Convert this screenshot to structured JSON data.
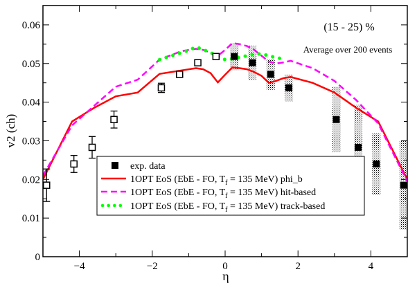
{
  "chart_data": {
    "type": "line",
    "title": "",
    "annotations": [
      "(15 - 25) %",
      "Average over 200 events"
    ],
    "xlabel": "η",
    "ylabel": "v2 (ch)",
    "xlim": [
      -5,
      5
    ],
    "ylim": [
      0,
      0.065
    ],
    "xticks": [
      -4,
      -2,
      0,
      2,
      4
    ],
    "yticks": [
      0,
      0.01,
      0.02,
      0.03,
      0.04,
      0.05,
      0.06
    ],
    "ytick_labels": [
      "0",
      "0.01",
      "0.02",
      "0.03",
      "0.04",
      "0.05",
      "0.06"
    ],
    "legend_position": "bottom-center",
    "colors": {
      "red": "#ff0000",
      "magenta": "#ff00ff",
      "green": "#00ff00",
      "black": "#000000"
    },
    "legend": [
      {
        "label_pre": "exp. data",
        "label_sub": "",
        "label_post": ""
      },
      {
        "label_pre": "1OPT EoS (EbE - FO, T",
        "label_sub": "f",
        "label_post": " = 135 MeV) phi_b"
      },
      {
        "label_pre": "1OPT EoS (EbE - FO, T",
        "label_sub": "f",
        "label_post": " = 135 MeV) hit-based"
      },
      {
        "label_pre": "1OPT EoS (EbE - FO, T",
        "label_sub": "f",
        "label_post": " = 135 MeV) track-based"
      }
    ],
    "exp_data_open": {
      "x": [
        -4.9,
        -4.15,
        -3.65,
        -3.05,
        -1.75,
        -1.25,
        -0.75,
        -0.25
      ],
      "y": [
        0.0185,
        0.024,
        0.0283,
        0.0355,
        0.0437,
        0.0472,
        0.0502,
        0.0518
      ],
      "err": [
        0.0042,
        0.0022,
        0.0028,
        0.0022,
        0.0012,
        0.0008,
        0.0006,
        0.0006
      ]
    },
    "exp_data_filled": {
      "x": [
        0.25,
        0.75,
        1.25,
        1.75,
        3.05,
        3.65,
        4.15,
        4.9
      ],
      "y": [
        0.0518,
        0.0502,
        0.0472,
        0.0437,
        0.0355,
        0.0283,
        0.024,
        0.0185
      ],
      "sys_err": [
        0.0035,
        0.0045,
        0.004,
        0.0035,
        0.0085,
        0.011,
        0.008,
        0.0115
      ]
    },
    "series": [
      {
        "name": "1OPT EoS (EbE - FO, Tf = 135 MeV) phi_b",
        "style": "solid",
        "color": "red",
        "x": [
          -5.0,
          -4.2,
          -3.6,
          -3.0,
          -2.4,
          -1.8,
          -1.2,
          -0.8,
          -0.6,
          -0.4,
          -0.2,
          0.0,
          0.2,
          0.4,
          0.6,
          0.8,
          1.0,
          1.2,
          1.4,
          1.6,
          1.8,
          2.4,
          3.0,
          3.6,
          4.2,
          5.0
        ],
        "y": [
          0.02,
          0.035,
          0.0385,
          0.0415,
          0.0425,
          0.0473,
          0.0482,
          0.0488,
          0.0485,
          0.0475,
          0.0451,
          0.0471,
          0.049,
          0.0488,
          0.0485,
          0.0478,
          0.0468,
          0.045,
          0.0455,
          0.0462,
          0.0465,
          0.045,
          0.0425,
          0.0385,
          0.035,
          0.02
        ]
      },
      {
        "name": "1OPT EoS (EbE - FO, Tf = 135 MeV) hit-based",
        "style": "dashed",
        "color": "magenta",
        "x": [
          -5.0,
          -4.2,
          -3.6,
          -3.0,
          -2.4,
          -1.8,
          -1.2,
          -0.8,
          -0.6,
          -0.4,
          -0.2,
          0.0,
          0.2,
          0.4,
          0.6,
          0.8,
          1.0,
          1.2,
          1.4,
          1.6,
          1.8,
          2.4,
          3.0,
          3.6,
          4.2,
          5.0
        ],
        "y": [
          0.021,
          0.034,
          0.039,
          0.044,
          0.0458,
          0.051,
          0.0532,
          0.0538,
          0.0535,
          0.0528,
          0.052,
          0.0535,
          0.0553,
          0.055,
          0.0545,
          0.0535,
          0.052,
          0.0505,
          0.05,
          0.0503,
          0.0507,
          0.0488,
          0.0455,
          0.0405,
          0.0345,
          0.0195
        ]
      },
      {
        "name": "1OPT EoS (EbE - FO, Tf = 135 MeV) track-based",
        "style": "dotted",
        "color": "green",
        "x": [
          -1.8,
          -1.6,
          -1.4,
          -1.2,
          -1.0,
          -0.8,
          -0.6,
          -0.4,
          -0.2,
          0.0,
          0.2,
          0.4,
          0.6,
          0.8,
          1.0,
          1.2,
          1.4,
          1.6
        ],
        "y": [
          0.051,
          0.0516,
          0.0522,
          0.0528,
          0.0534,
          0.0543,
          0.0536,
          0.0528,
          0.0519,
          0.051,
          0.0512,
          0.0516,
          0.052,
          0.0524,
          0.0525,
          0.052,
          0.0515,
          0.0512
        ]
      }
    ]
  }
}
